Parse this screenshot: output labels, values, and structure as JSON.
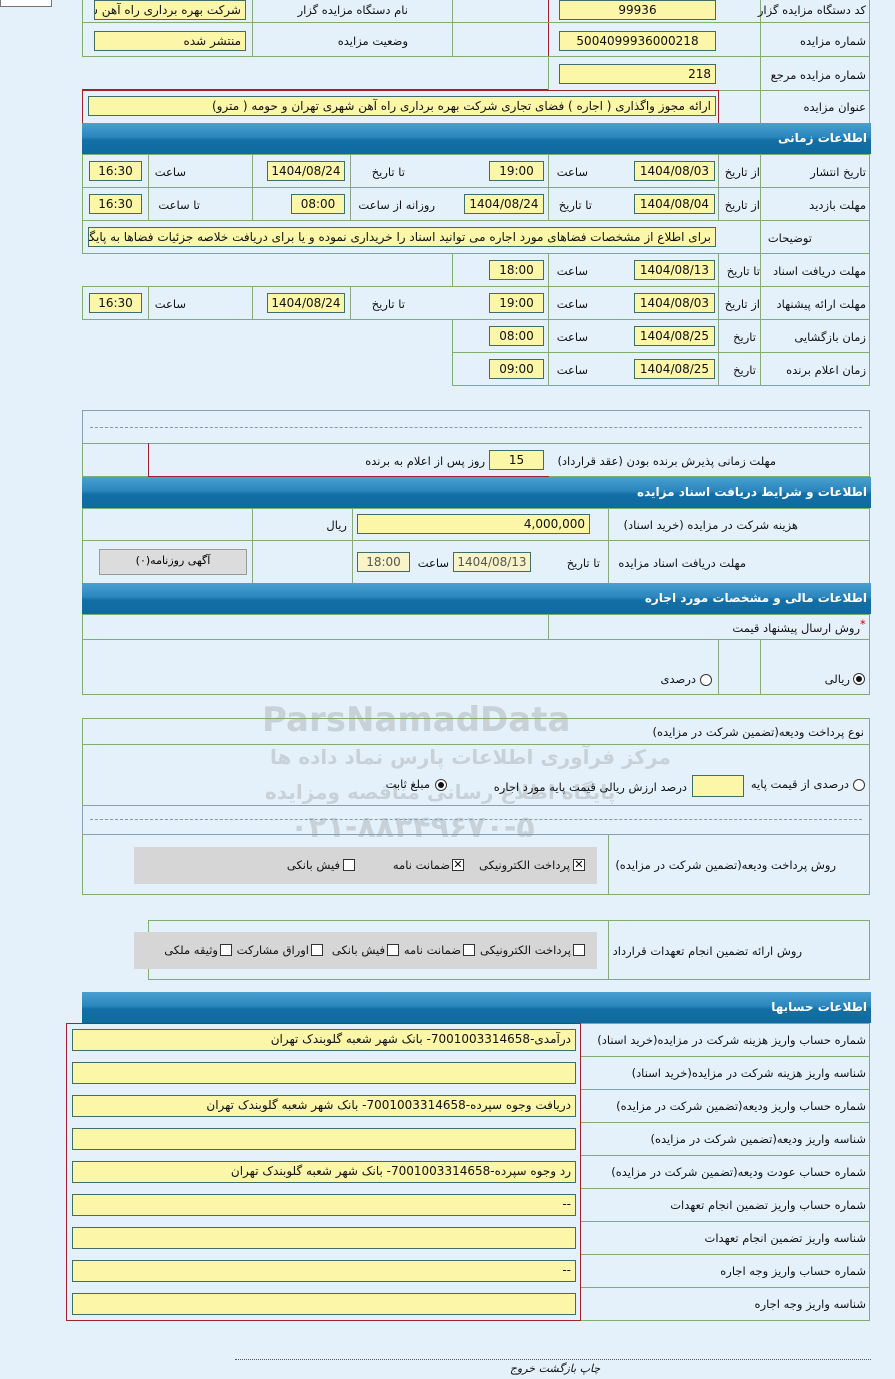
{
  "header": {
    "code_label": "کد دستگاه مزایده گزار",
    "code": "99936",
    "org_label": "نام دستگاه مزایده گزار",
    "org": "شرکت بهره برداری راه آهن شهری تهران و حومه",
    "number_label": "شماره مزایده",
    "number": "5004099936000218",
    "status_label": "وضعیت مزایده",
    "status": "منتشر شده",
    "ref_label": "شماره مزایده مرجع",
    "ref": "218",
    "title_label": "عنوان مزایده",
    "title": "ارائه مجوز واگذاری ( اجاره ) فضای تجاری شرکت بهره برداری راه آهن شهری تهران و حومه ( مترو)"
  },
  "time": {
    "section": "اطلاعات زمانی",
    "publish": {
      "label": "تاریخ انتشار",
      "from_label": "از تاریخ",
      "from": "1404/08/03",
      "time_label": "ساعت",
      "time": "19:00",
      "to_label": "تا تاریخ",
      "to": "1404/08/24",
      "time2_label": "ساعت",
      "time2": "16:30"
    },
    "visit": {
      "label": "مهلت بازدید",
      "from_label": "از تاریخ",
      "from": "1404/08/04",
      "to_label": "تا تاریخ",
      "to": "1404/08/24",
      "daily_label": "روزانه از ساعت",
      "daily": "08:00",
      "until_label": "تا ساعت",
      "until": "16:30"
    },
    "desc_label": "توضیحات",
    "desc": "برای اطلاع از مشخصات فضاهای مورد اجاره می توانید اسناد را خریداری نموده و یا برای دریافت خلاصه جزئیات فضاها به پایگاه",
    "docs": {
      "label": "مهلت دریافت اسناد",
      "to_label": "تا تاریخ",
      "to": "1404/08/13",
      "time_label": "ساعت",
      "time": "18:00"
    },
    "offer": {
      "label": "مهلت ارائه پیشنهاد",
      "from_label": "از تاریخ",
      "from": "1404/08/03",
      "time_label": "ساعت",
      "time": "19:00",
      "to_label": "تا تاریخ",
      "to": "1404/08/24",
      "time2_label": "ساعت",
      "time2": "16:30"
    },
    "open": {
      "label": "زمان بازگشایی",
      "date_label": "تاریخ",
      "date": "1404/08/25",
      "time_label": "ساعت",
      "time": "08:00"
    },
    "winner": {
      "label": "زمان اعلام برنده",
      "date_label": "تاریخ",
      "date": "1404/08/25",
      "time_label": "ساعت",
      "time": "09:00"
    },
    "accept_label": "مهلت زمانی پذیرش برنده بودن (عقد قرارداد)",
    "accept": "15",
    "accept_suffix": "روز پس از اعلام به برنده"
  },
  "docs": {
    "section": "اطلاعات و شرایط دریافت اسناد مزایده",
    "fee_label": "هزینه شرکت در مزایده (خرید اسناد)",
    "fee": "4,000,000",
    "currency": "ریال",
    "deadline_label": "مهلت دریافت اسناد مزایده",
    "to_label": "تا تاریخ",
    "to": "1404/08/13",
    "time_label": "ساعت",
    "time": "18:00",
    "ad_button": "آگهی روزنامه(۰)"
  },
  "finance": {
    "section": "اطلاعات مالی و مشخصات مورد اجاره",
    "method_label": "روش ارسال پیشنهاد قیمت",
    "required": "*",
    "rial": "ریالی",
    "percent": "درصدی",
    "deposit_type_label": "نوع پرداخت ودیعه(تضمین شرکت در مزایده)",
    "percent_base": "درصدی از قیمت پایه",
    "percent_base_suffix": "درصد ارزش ریالی قیمت پایه مورد اجاره",
    "fixed": "مبلغ ثابت",
    "deposit_method_label": "روش پرداخت ودیعه(تضمین شرکت در مزایده)",
    "deposit_methods": [
      {
        "label": "پرداخت الکترونیکی",
        "checked": true
      },
      {
        "label": "ضمانت نامه",
        "checked": true
      },
      {
        "label": "فیش بانکی",
        "checked": false
      }
    ],
    "guarantee_label": "روش ارائه تضمین انجام تعهدات قرارداد",
    "guarantees": [
      {
        "label": "پرداخت الکترونیکی",
        "checked": false
      },
      {
        "label": "ضمانت نامه",
        "checked": false
      },
      {
        "label": "فیش بانکی",
        "checked": false
      },
      {
        "label": "اوراق مشارکت",
        "checked": false
      },
      {
        "label": "وثیقه ملکی",
        "checked": false
      }
    ]
  },
  "accounts": {
    "section": "اطلاعات حسابها",
    "rows": [
      {
        "label": "شماره حساب واریز هزینه شرکت در مزایده(خرید اسناد)",
        "value": "درآمدی-7001003314658- بانک شهر شعبه گلوبندک تهران"
      },
      {
        "label": "شناسه واریز هزینه شرکت در مزایده(خرید اسناد)",
        "value": ""
      },
      {
        "label": "شماره حساب واریز ودیعه(تضمین شرکت در مزایده)",
        "value": "دریافت وجوه سپرده-7001003314658- بانک شهر شعبه گلوبندک تهران"
      },
      {
        "label": "شناسه واریز ودیعه(تضمین شرکت در مزایده)",
        "value": ""
      },
      {
        "label": "شماره حساب عودت ودیعه(تضمین شرکت در مزایده)",
        "value": "رد وجوه سپرده-7001003314658- بانک شهر شعبه گلوبندک تهران"
      },
      {
        "label": "شماره حساب واریز تضمین انجام تعهدات",
        "value": "--"
      },
      {
        "label": "شناسه واریز تضمین انجام تعهدات",
        "value": ""
      },
      {
        "label": "شماره حساب واریز وجه اجاره",
        "value": "--"
      },
      {
        "label": "شناسه واریز وجه اجاره",
        "value": ""
      }
    ]
  },
  "footer": {
    "links": "چاپ بازگشت خروج"
  },
  "watermark": {
    "brand": "ParsNamadData",
    "line1": "مرکز فرآوری اطلاعات پارس نماد داده ها",
    "line2": "پایگاه اطلاع رسانی مناقصه ومزایده",
    "phone": "۰۲۱-۸۸۳۴۹۶۷۰-۵"
  },
  "colors": {
    "header_bar": "#1f7fb5",
    "input_bg": "#fbf6a8",
    "page_bg": "#e4f1fb"
  }
}
